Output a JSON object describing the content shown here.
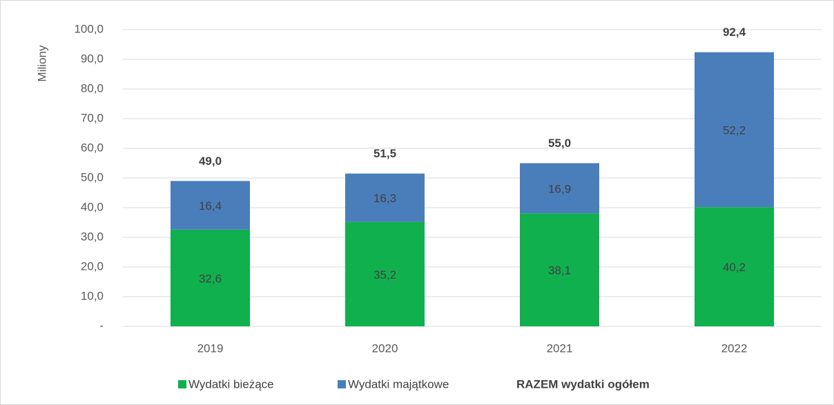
{
  "chart_data": {
    "type": "stacked_bar",
    "y_label": "Miliony",
    "categories": [
      "2019",
      "2020",
      "2021",
      "2022"
    ],
    "series": [
      {
        "name": "Wydatki bieżące",
        "color": "#10b04f",
        "values": [
          32.6,
          35.2,
          38.1,
          40.2
        ],
        "value_labels": [
          "32,6",
          "35,2",
          "38,1",
          "40,2"
        ]
      },
      {
        "name": "Wydatki majątkowe",
        "color": "#4a7ebb",
        "values": [
          16.4,
          16.3,
          16.9,
          52.2
        ],
        "value_labels": [
          "16,4",
          "16,3",
          "16,9",
          "52,2"
        ]
      }
    ],
    "totals": {
      "name": "RAZEM wydatki ogółem",
      "values": [
        49.0,
        51.5,
        55.0,
        92.4
      ],
      "value_labels": [
        "49,0",
        "51,5",
        "55,0",
        "92,4"
      ]
    },
    "ylim": [
      0,
      100
    ],
    "yticks": [
      {
        "value": 0,
        "label": "-"
      },
      {
        "value": 10,
        "label": "10,0"
      },
      {
        "value": 20,
        "label": "20,0"
      },
      {
        "value": 30,
        "label": "30,0"
      },
      {
        "value": 40,
        "label": "40,0"
      },
      {
        "value": 50,
        "label": "50,0"
      },
      {
        "value": 60,
        "label": "60,0"
      },
      {
        "value": 70,
        "label": "70,0"
      },
      {
        "value": 80,
        "label": "80,0"
      },
      {
        "value": 90,
        "label": "90,0"
      },
      {
        "value": 100,
        "label": "100,0"
      }
    ],
    "grid": true,
    "legend": "bottom"
  }
}
